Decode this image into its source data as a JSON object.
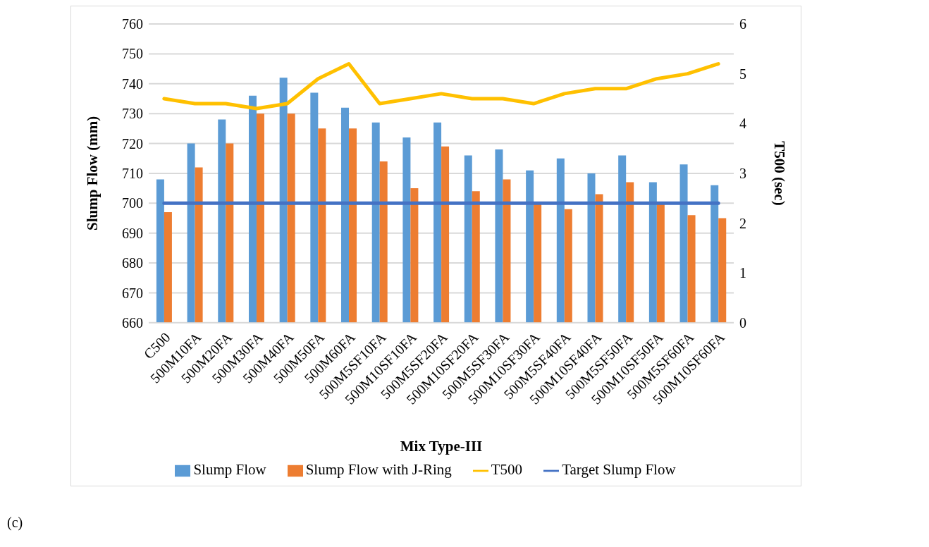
{
  "chart_data": {
    "type": "bar",
    "xlabel": "Mix Type-III",
    "ylabel": "Slump Flow (mm)",
    "y2label": "T500 (sec)",
    "categories": [
      "C500",
      "500M10FA",
      "500M20FA",
      "500M30FA",
      "500M40FA",
      "500M50FA",
      "500M60FA",
      "500M5SF10FA",
      "500M10SF10FA",
      "500M5SF20FA",
      "500M10SF20FA",
      "500M5SF30FA",
      "500M10SF30FA",
      "500M5SF40FA",
      "500M10SF40FA",
      "500M5SF50FA",
      "500M10SF50FA",
      "500M5SF60FA",
      "500M10SF60FA"
    ],
    "series": [
      {
        "name": "Slump Flow",
        "color": "#5b9bd5",
        "values": [
          708,
          720,
          728,
          736,
          742,
          737,
          732,
          727,
          722,
          727,
          716,
          718,
          711,
          715,
          710,
          716,
          707,
          713,
          706
        ]
      },
      {
        "name": "Slump Flow with J-Ring",
        "color": "#ed7d31",
        "values": [
          697,
          712,
          720,
          730,
          730,
          725,
          725,
          714,
          705,
          719,
          704,
          708,
          700,
          698,
          703,
          707,
          700,
          696,
          695
        ]
      },
      {
        "name": "Target Slump Flow",
        "type": "line",
        "color": "#4472c4",
        "values": [
          700,
          700,
          700,
          700,
          700,
          700,
          700,
          700,
          700,
          700,
          700,
          700,
          700,
          700,
          700,
          700,
          700,
          700,
          700
        ]
      },
      {
        "name": "T500",
        "type": "line",
        "axis": "y2",
        "color": "#ffc000",
        "values": [
          4.5,
          4.4,
          4.4,
          4.3,
          4.4,
          4.9,
          5.2,
          4.4,
          4.5,
          4.6,
          4.5,
          4.5,
          4.4,
          4.6,
          4.7,
          4.7,
          4.9,
          5.0,
          5.2
        ]
      }
    ],
    "ylim": [
      660,
      760
    ],
    "yticks": [
      660,
      670,
      680,
      690,
      700,
      710,
      720,
      730,
      740,
      750,
      760
    ],
    "y2lim": [
      0,
      6
    ],
    "y2ticks": [
      0,
      1,
      2,
      3,
      4,
      5,
      6
    ],
    "grid": "y",
    "legend": "bottom",
    "marker": "none",
    "line_style": "solid",
    "annotations": [
      "(c)"
    ]
  }
}
